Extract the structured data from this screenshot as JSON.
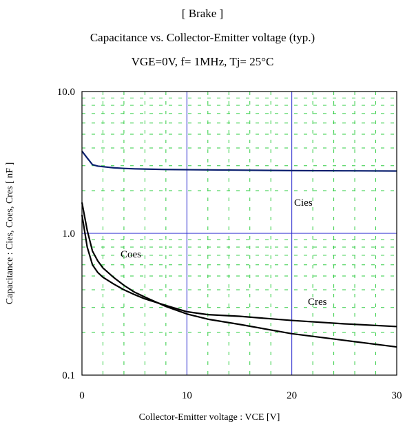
{
  "chart_data": {
    "type": "line",
    "title": "[ Brake ]",
    "subtitle": "Capacitance  vs.  Collector-Emitter voltage  (typ.)",
    "conditions": "VGE=0V,  f= 1MHz,  Tj= 25°C",
    "xlabel": "Collector-Emitter voltage : VCE [V]",
    "ylabel": "Capacitance  :  Cies, Coes, Cres  [ nF ]",
    "xlim": [
      0,
      30
    ],
    "ylim": [
      0.1,
      10.0
    ],
    "yscale": "log",
    "x_ticks": [
      "0",
      "10",
      "20",
      "30"
    ],
    "y_ticks": [
      "0.1",
      "1.0",
      "10.0"
    ],
    "grid": true,
    "annotations": [
      "Cies",
      "Coes",
      "Cres"
    ],
    "series": [
      {
        "name": "Cies",
        "color": "#0a1f6e",
        "x": [
          0,
          0.5,
          1,
          1.5,
          2,
          3,
          4,
          5,
          6,
          8,
          10,
          15,
          20,
          25,
          30
        ],
        "y": [
          3.8,
          3.4,
          3.05,
          2.98,
          2.95,
          2.9,
          2.87,
          2.85,
          2.84,
          2.82,
          2.81,
          2.79,
          2.77,
          2.76,
          2.75
        ]
      },
      {
        "name": "Coes",
        "color": "#000000",
        "x": [
          0,
          0.5,
          1,
          1.5,
          2,
          3,
          4,
          5,
          6,
          8,
          10,
          12,
          15,
          20,
          25,
          30
        ],
        "y": [
          1.65,
          1.05,
          0.75,
          0.64,
          0.57,
          0.49,
          0.43,
          0.385,
          0.355,
          0.305,
          0.27,
          0.248,
          0.228,
          0.196,
          0.176,
          0.158
        ]
      },
      {
        "name": "Cres",
        "color": "#000000",
        "x": [
          0,
          0.5,
          1,
          1.5,
          2,
          3,
          4,
          5,
          6,
          8,
          10,
          12,
          15,
          20,
          25,
          30
        ],
        "y": [
          1.35,
          0.8,
          0.6,
          0.53,
          0.49,
          0.44,
          0.4,
          0.37,
          0.345,
          0.31,
          0.28,
          0.267,
          0.26,
          0.243,
          0.23,
          0.22
        ]
      }
    ]
  }
}
